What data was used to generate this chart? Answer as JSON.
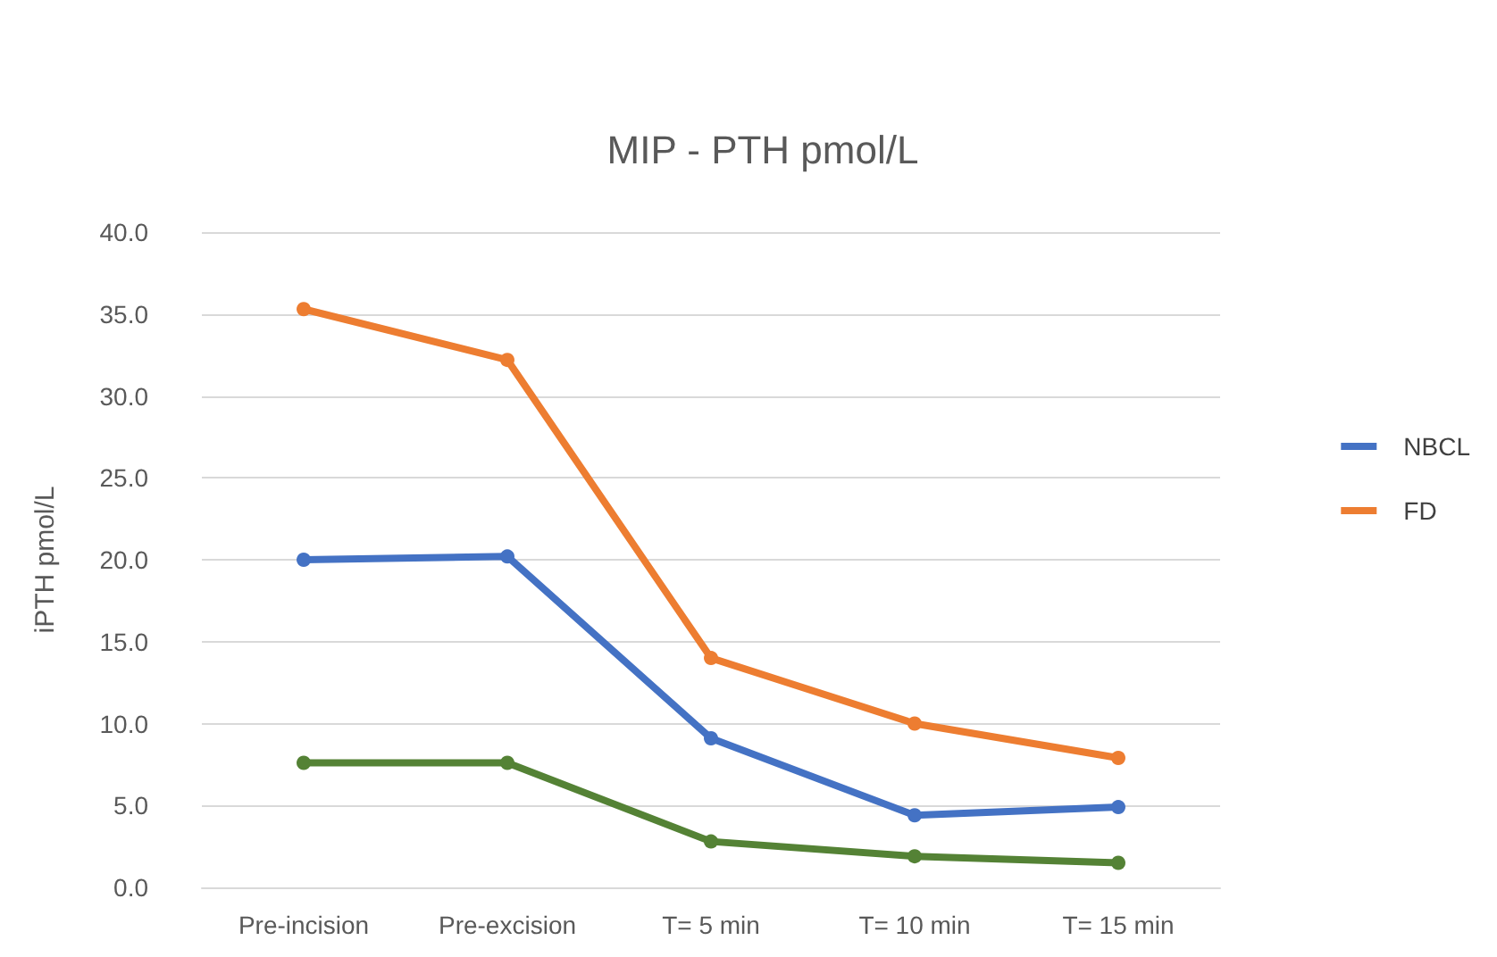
{
  "chart_data": {
    "type": "line",
    "title": "MIP - PTH pmol/L",
    "ylabel": "iPTH pmol/L",
    "categories": [
      "Pre-incision",
      "Pre-excision",
      "T= 5 min",
      "T= 10 min",
      "T= 15 min"
    ],
    "series": [
      {
        "name": "NBCL",
        "color": "#4472c4",
        "values": [
          20.0,
          20.2,
          9.1,
          4.4,
          4.9
        ]
      },
      {
        "name": "FD",
        "color": "#ed7d31",
        "values": [
          35.3,
          32.2,
          14.0,
          10.0,
          7.9
        ]
      },
      {
        "color": "#548235",
        "values": [
          7.6,
          7.6,
          2.8,
          1.9,
          1.5
        ]
      }
    ],
    "ylim": [
      0,
      40
    ],
    "yticks": [
      {
        "value": 0,
        "label": "0.0"
      },
      {
        "value": 5,
        "label": "5.0"
      },
      {
        "value": 10,
        "label": "10.0"
      },
      {
        "value": 15,
        "label": "15.0"
      },
      {
        "value": 20,
        "label": "20.0"
      },
      {
        "value": 25,
        "label": "25.0"
      },
      {
        "value": 30,
        "label": "30.0"
      },
      {
        "value": 35,
        "label": "35.0"
      },
      {
        "value": 40,
        "label": "40.0"
      }
    ],
    "grid": "y",
    "legend": "right",
    "marker": "circle",
    "line_style": "solid"
  }
}
